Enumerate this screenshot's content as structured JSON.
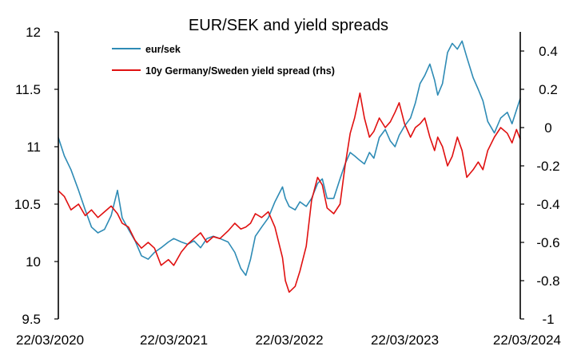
{
  "chart_data": {
    "type": "line",
    "title": "EUR/SEK and yield spreads",
    "xlabel": "",
    "ylabel": "",
    "x_range": [
      "2020-03-22",
      "2024-03-22"
    ],
    "x_ticks": [
      "22/03/2020",
      "22/03/2021",
      "22/03/2022",
      "22/03/2023",
      "22/03/2024"
    ],
    "y_left": {
      "min": 9.5,
      "max": 12,
      "ticks": [
        "9.5",
        "10",
        "10.5",
        "11",
        "11.5",
        "12"
      ]
    },
    "y_right": {
      "min": -1,
      "max": 0.5,
      "ticks": [
        "-1",
        "-0.8",
        "-0.6",
        "-0.4",
        "-0.2",
        "0",
        "0.2",
        "0.4"
      ]
    },
    "grid": false,
    "legend_position": "top-left",
    "series": [
      {
        "name": "eur/sek",
        "axis": "left",
        "color": "#2e8bb5",
        "points": [
          [
            "2020-03-22",
            11.08
          ],
          [
            "2020-04-10",
            10.92
          ],
          [
            "2020-05-01",
            10.8
          ],
          [
            "2020-05-25",
            10.62
          ],
          [
            "2020-06-15",
            10.45
          ],
          [
            "2020-07-05",
            10.3
          ],
          [
            "2020-07-25",
            10.25
          ],
          [
            "2020-08-15",
            10.28
          ],
          [
            "2020-09-05",
            10.4
          ],
          [
            "2020-09-25",
            10.62
          ],
          [
            "2020-10-10",
            10.38
          ],
          [
            "2020-10-30",
            10.28
          ],
          [
            "2020-11-20",
            10.18
          ],
          [
            "2020-12-10",
            10.05
          ],
          [
            "2020-12-31",
            10.02
          ],
          [
            "2021-01-20",
            10.08
          ],
          [
            "2021-02-10",
            10.12
          ],
          [
            "2021-03-05",
            10.17
          ],
          [
            "2021-03-22",
            10.2
          ],
          [
            "2021-04-15",
            10.17
          ],
          [
            "2021-05-05",
            10.15
          ],
          [
            "2021-05-25",
            10.18
          ],
          [
            "2021-06-15",
            10.12
          ],
          [
            "2021-07-05",
            10.2
          ],
          [
            "2021-07-25",
            10.22
          ],
          [
            "2021-08-15",
            10.2
          ],
          [
            "2021-09-10",
            10.17
          ],
          [
            "2021-10-01",
            10.08
          ],
          [
            "2021-10-20",
            9.94
          ],
          [
            "2021-11-05",
            9.88
          ],
          [
            "2021-11-20",
            10.02
          ],
          [
            "2021-12-05",
            10.22
          ],
          [
            "2021-12-25",
            10.3
          ],
          [
            "2022-01-15",
            10.38
          ],
          [
            "2022-02-05",
            10.52
          ],
          [
            "2022-03-01",
            10.65
          ],
          [
            "2022-03-10",
            10.55
          ],
          [
            "2022-03-22",
            10.48
          ],
          [
            "2022-04-10",
            10.45
          ],
          [
            "2022-04-25",
            10.52
          ],
          [
            "2022-05-15",
            10.48
          ],
          [
            "2022-06-01",
            10.55
          ],
          [
            "2022-06-20",
            10.68
          ],
          [
            "2022-07-05",
            10.72
          ],
          [
            "2022-07-20",
            10.55
          ],
          [
            "2022-08-10",
            10.55
          ],
          [
            "2022-08-30",
            10.72
          ],
          [
            "2022-09-15",
            10.85
          ],
          [
            "2022-10-01",
            10.95
          ],
          [
            "2022-10-15",
            10.92
          ],
          [
            "2022-11-01",
            10.88
          ],
          [
            "2022-11-15",
            10.85
          ],
          [
            "2022-12-01",
            10.95
          ],
          [
            "2022-12-15",
            10.9
          ],
          [
            "2023-01-01",
            11.08
          ],
          [
            "2023-01-20",
            11.15
          ],
          [
            "2023-02-05",
            11.05
          ],
          [
            "2023-02-20",
            11.0
          ],
          [
            "2023-03-05",
            11.1
          ],
          [
            "2023-03-22",
            11.18
          ],
          [
            "2023-04-10",
            11.25
          ],
          [
            "2023-04-25",
            11.38
          ],
          [
            "2023-05-10",
            11.55
          ],
          [
            "2023-05-25",
            11.62
          ],
          [
            "2023-06-10",
            11.72
          ],
          [
            "2023-06-25",
            11.58
          ],
          [
            "2023-07-05",
            11.45
          ],
          [
            "2023-07-20",
            11.55
          ],
          [
            "2023-08-05",
            11.82
          ],
          [
            "2023-08-20",
            11.9
          ],
          [
            "2023-09-05",
            11.85
          ],
          [
            "2023-09-20",
            11.92
          ],
          [
            "2023-10-05",
            11.78
          ],
          [
            "2023-10-25",
            11.6
          ],
          [
            "2023-11-10",
            11.5
          ],
          [
            "2023-11-25",
            11.4
          ],
          [
            "2023-12-10",
            11.22
          ],
          [
            "2023-12-31",
            11.12
          ],
          [
            "2024-01-20",
            11.25
          ],
          [
            "2024-02-10",
            11.3
          ],
          [
            "2024-02-25",
            11.2
          ],
          [
            "2024-03-10",
            11.32
          ],
          [
            "2024-03-22",
            11.42
          ]
        ]
      },
      {
        "name": "10y Germany/Sweden yield spread (rhs)",
        "axis": "right",
        "color": "#e01010",
        "points": [
          [
            "2020-03-22",
            -0.33
          ],
          [
            "2020-04-10",
            -0.36
          ],
          [
            "2020-05-01",
            -0.43
          ],
          [
            "2020-05-25",
            -0.4
          ],
          [
            "2020-06-15",
            -0.46
          ],
          [
            "2020-07-05",
            -0.43
          ],
          [
            "2020-07-25",
            -0.47
          ],
          [
            "2020-08-15",
            -0.44
          ],
          [
            "2020-09-05",
            -0.41
          ],
          [
            "2020-09-25",
            -0.45
          ],
          [
            "2020-10-10",
            -0.5
          ],
          [
            "2020-10-30",
            -0.52
          ],
          [
            "2020-11-20",
            -0.59
          ],
          [
            "2020-12-10",
            -0.63
          ],
          [
            "2020-12-31",
            -0.6
          ],
          [
            "2021-01-20",
            -0.63
          ],
          [
            "2021-02-10",
            -0.72
          ],
          [
            "2021-03-05",
            -0.69
          ],
          [
            "2021-03-22",
            -0.72
          ],
          [
            "2021-04-15",
            -0.65
          ],
          [
            "2021-05-05",
            -0.61
          ],
          [
            "2021-05-25",
            -0.58
          ],
          [
            "2021-06-15",
            -0.55
          ],
          [
            "2021-07-05",
            -0.6
          ],
          [
            "2021-07-25",
            -0.57
          ],
          [
            "2021-08-15",
            -0.58
          ],
          [
            "2021-09-10",
            -0.54
          ],
          [
            "2021-10-01",
            -0.5
          ],
          [
            "2021-10-20",
            -0.53
          ],
          [
            "2021-11-05",
            -0.52
          ],
          [
            "2021-11-20",
            -0.5
          ],
          [
            "2021-12-05",
            -0.45
          ],
          [
            "2021-12-25",
            -0.47
          ],
          [
            "2022-01-15",
            -0.44
          ],
          [
            "2022-02-05",
            -0.52
          ],
          [
            "2022-03-01",
            -0.68
          ],
          [
            "2022-03-10",
            -0.8
          ],
          [
            "2022-03-22",
            -0.86
          ],
          [
            "2022-04-10",
            -0.83
          ],
          [
            "2022-04-25",
            -0.75
          ],
          [
            "2022-05-15",
            -0.62
          ],
          [
            "2022-06-01",
            -0.38
          ],
          [
            "2022-06-20",
            -0.26
          ],
          [
            "2022-07-05",
            -0.3
          ],
          [
            "2022-07-20",
            -0.42
          ],
          [
            "2022-08-10",
            -0.45
          ],
          [
            "2022-08-30",
            -0.4
          ],
          [
            "2022-09-15",
            -0.2
          ],
          [
            "2022-10-01",
            -0.03
          ],
          [
            "2022-10-15",
            0.05
          ],
          [
            "2022-11-01",
            0.18
          ],
          [
            "2022-11-15",
            0.05
          ],
          [
            "2022-12-01",
            -0.05
          ],
          [
            "2022-12-15",
            -0.02
          ],
          [
            "2023-01-01",
            0.05
          ],
          [
            "2023-01-20",
            0.0
          ],
          [
            "2023-02-05",
            0.03
          ],
          [
            "2023-02-20",
            0.08
          ],
          [
            "2023-03-05",
            0.13
          ],
          [
            "2023-03-22",
            0.02
          ],
          [
            "2023-04-10",
            -0.05
          ],
          [
            "2023-04-25",
            0.0
          ],
          [
            "2023-05-10",
            0.02
          ],
          [
            "2023-05-25",
            0.05
          ],
          [
            "2023-06-10",
            -0.05
          ],
          [
            "2023-06-25",
            -0.12
          ],
          [
            "2023-07-05",
            -0.05
          ],
          [
            "2023-07-20",
            -0.1
          ],
          [
            "2023-08-05",
            -0.2
          ],
          [
            "2023-08-20",
            -0.15
          ],
          [
            "2023-09-05",
            -0.05
          ],
          [
            "2023-09-20",
            -0.12
          ],
          [
            "2023-10-05",
            -0.26
          ],
          [
            "2023-10-25",
            -0.22
          ],
          [
            "2023-11-10",
            -0.18
          ],
          [
            "2023-11-25",
            -0.22
          ],
          [
            "2023-12-10",
            -0.12
          ],
          [
            "2023-12-31",
            -0.05
          ],
          [
            "2024-01-20",
            0.0
          ],
          [
            "2024-02-10",
            -0.03
          ],
          [
            "2024-02-25",
            -0.08
          ],
          [
            "2024-03-10",
            -0.01
          ],
          [
            "2024-03-22",
            -0.06
          ]
        ]
      }
    ]
  }
}
